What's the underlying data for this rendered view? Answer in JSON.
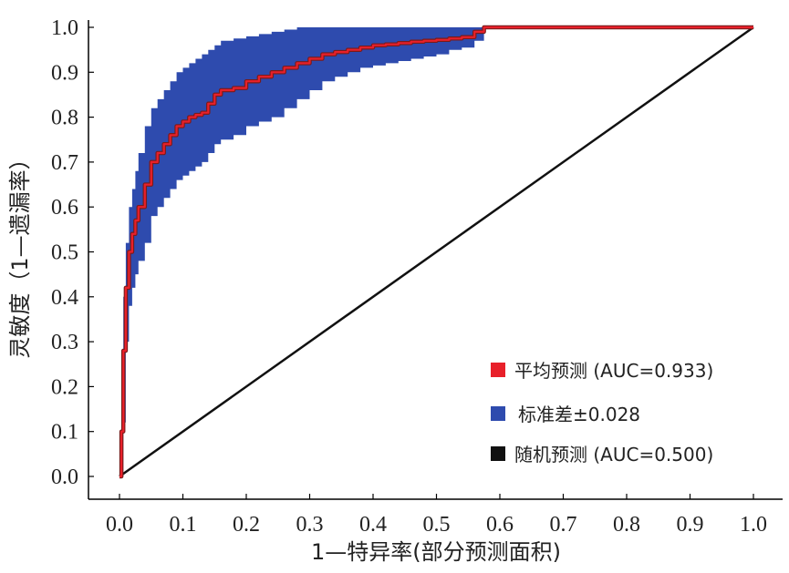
{
  "chart_data": {
    "type": "line",
    "xlabel": "1—特异率(部分预测面积)",
    "ylabel": "灵敏度（1—遗漏率）",
    "xlim": [
      0.0,
      1.0
    ],
    "ylim": [
      0.0,
      1.0
    ],
    "x_ticks": [
      "0.0",
      "0.1",
      "0.2",
      "0.3",
      "0.4",
      "0.5",
      "0.6",
      "0.7",
      "0.8",
      "0.9",
      "1.0"
    ],
    "y_ticks": [
      "0.0",
      "0.1",
      "0.2",
      "0.3",
      "0.4",
      "0.5",
      "0.6",
      "0.7",
      "0.8",
      "0.9",
      "1.0"
    ],
    "grid": false,
    "legend_position": "bottom-right",
    "series": [
      {
        "name": "平均预测 (AUC=0.933)",
        "color": "#e8202a",
        "x": [
          0.0,
          0.003,
          0.006,
          0.01,
          0.015,
          0.02,
          0.025,
          0.03,
          0.04,
          0.05,
          0.06,
          0.07,
          0.08,
          0.09,
          0.1,
          0.11,
          0.12,
          0.13,
          0.14,
          0.15,
          0.16,
          0.18,
          0.2,
          0.22,
          0.24,
          0.26,
          0.28,
          0.3,
          0.32,
          0.34,
          0.36,
          0.38,
          0.4,
          0.42,
          0.44,
          0.46,
          0.48,
          0.5,
          0.52,
          0.54,
          0.56,
          0.575,
          0.6,
          0.7,
          0.8,
          0.9,
          1.0
        ],
        "y": [
          0.0,
          0.1,
          0.28,
          0.42,
          0.5,
          0.54,
          0.57,
          0.6,
          0.65,
          0.7,
          0.72,
          0.74,
          0.76,
          0.78,
          0.79,
          0.8,
          0.805,
          0.81,
          0.83,
          0.85,
          0.86,
          0.865,
          0.88,
          0.89,
          0.9,
          0.91,
          0.92,
          0.93,
          0.94,
          0.945,
          0.95,
          0.955,
          0.96,
          0.962,
          0.965,
          0.968,
          0.97,
          0.972,
          0.975,
          0.978,
          0.99,
          1.0,
          1.0,
          1.0,
          1.0,
          1.0,
          1.0
        ]
      },
      {
        "name": "标准差±0.028",
        "color": "#2e4bae",
        "x": [
          0.0,
          0.003,
          0.006,
          0.01,
          0.015,
          0.02,
          0.025,
          0.03,
          0.04,
          0.05,
          0.06,
          0.07,
          0.08,
          0.09,
          0.1,
          0.11,
          0.12,
          0.13,
          0.14,
          0.15,
          0.16,
          0.18,
          0.2,
          0.22,
          0.24,
          0.26,
          0.28,
          0.3,
          0.32,
          0.34,
          0.36,
          0.38,
          0.4,
          0.42,
          0.44,
          0.46,
          0.48,
          0.5,
          0.52,
          0.54,
          0.56,
          0.575,
          0.6,
          0.7,
          0.8,
          0.9,
          1.0
        ],
        "upper": [
          0.0,
          0.25,
          0.4,
          0.52,
          0.6,
          0.64,
          0.68,
          0.72,
          0.78,
          0.82,
          0.84,
          0.86,
          0.88,
          0.9,
          0.91,
          0.92,
          0.93,
          0.94,
          0.95,
          0.96,
          0.97,
          0.975,
          0.98,
          0.985,
          0.99,
          0.995,
          1.0,
          1.0,
          1.0,
          1.0,
          1.0,
          1.0,
          1.0,
          1.0,
          1.0,
          1.0,
          1.0,
          1.0,
          1.0,
          1.0,
          1.0,
          1.0,
          1.0,
          1.0,
          1.0,
          1.0,
          1.0
        ],
        "lower": [
          0.0,
          0.0,
          0.12,
          0.3,
          0.38,
          0.42,
          0.45,
          0.48,
          0.52,
          0.58,
          0.6,
          0.62,
          0.64,
          0.66,
          0.67,
          0.68,
          0.69,
          0.7,
          0.72,
          0.74,
          0.75,
          0.76,
          0.78,
          0.79,
          0.8,
          0.82,
          0.84,
          0.86,
          0.88,
          0.89,
          0.9,
          0.91,
          0.915,
          0.92,
          0.925,
          0.93,
          0.935,
          0.94,
          0.95,
          0.955,
          0.97,
          1.0,
          1.0,
          1.0,
          1.0,
          1.0,
          1.0
        ]
      },
      {
        "name": "随机预测 (AUC=0.500)",
        "color": "#111111",
        "x": [
          0.0,
          1.0
        ],
        "y": [
          0.0,
          1.0
        ]
      }
    ]
  }
}
